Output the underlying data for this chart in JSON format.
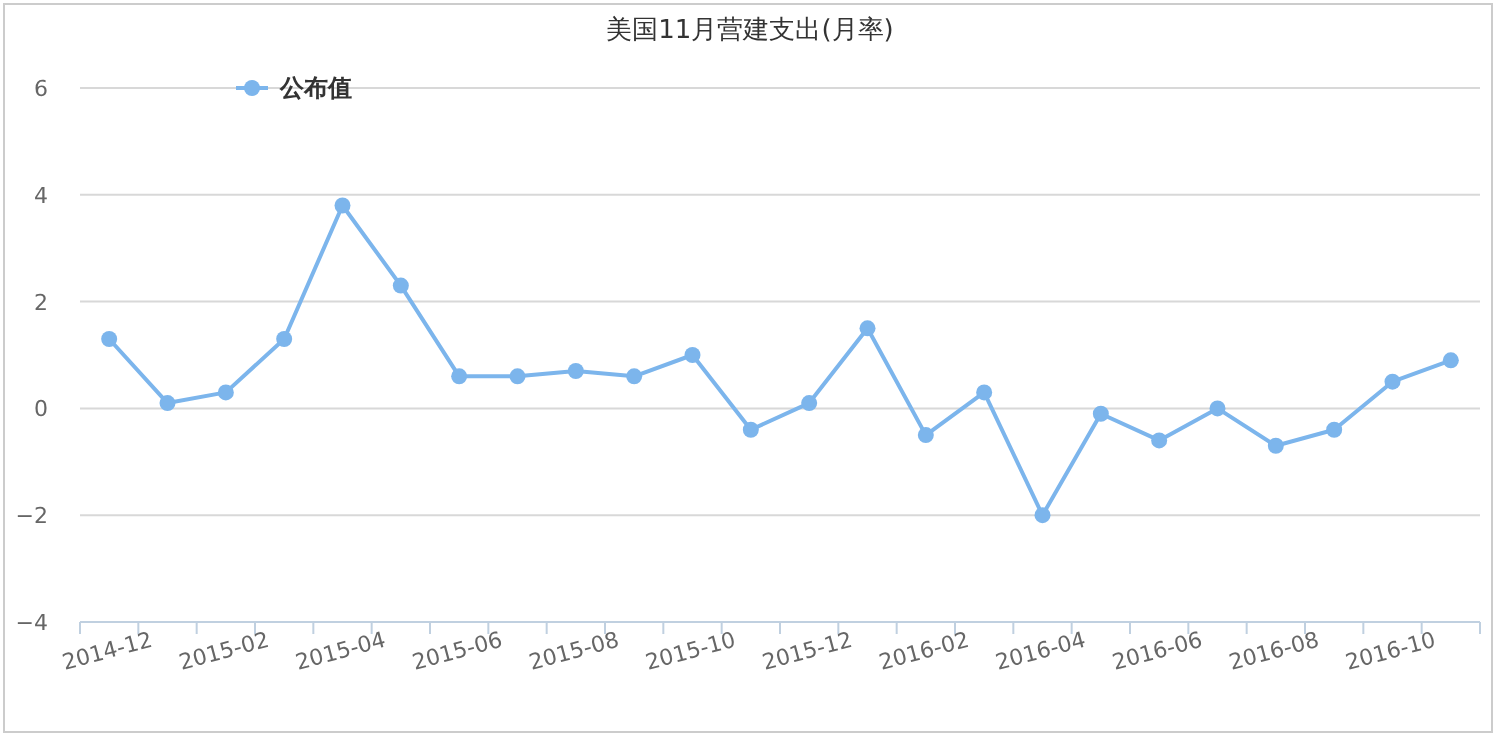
{
  "chart_data": {
    "type": "line",
    "title": "美国11月营建支出(月率)",
    "categories": [
      "2014-12",
      null,
      "2015-02",
      null,
      "2015-04",
      null,
      "2015-06",
      null,
      "2015-08",
      null,
      "2015-10",
      null,
      "2015-12",
      null,
      "2016-02",
      null,
      "2016-04",
      null,
      "2016-06",
      null,
      "2016-08",
      null,
      "2016-10",
      null
    ],
    "series": [
      {
        "name": "公布值",
        "color": "#7cb5ec",
        "values": [
          1.3,
          0.1,
          0.3,
          1.3,
          3.8,
          2.3,
          0.6,
          0.6,
          0.7,
          0.6,
          1.0,
          -0.4,
          0.1,
          1.5,
          -0.5,
          0.3,
          -2.0,
          -0.1,
          -0.6,
          0.0,
          -0.7,
          -0.4,
          0.5,
          0.9
        ]
      }
    ],
    "ylim": [
      -4,
      6
    ],
    "yticks": [
      -4,
      -2,
      0,
      2,
      4,
      6
    ],
    "grid": "y",
    "legend": "top left",
    "marker": "circle",
    "line_style": "solid"
  }
}
